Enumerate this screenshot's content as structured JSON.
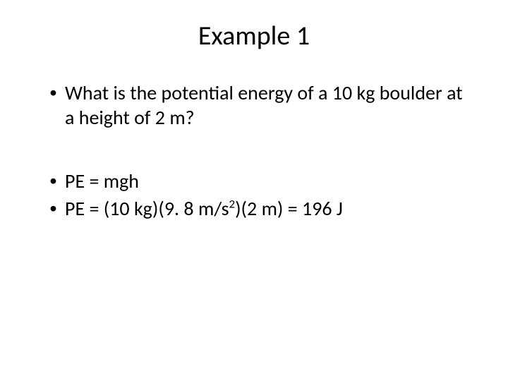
{
  "title": "Example 1",
  "bullets": {
    "group1": [
      "What is the potential energy of a 10 kg boulder at a height of 2 m?"
    ],
    "group2": [
      "PE = mgh",
      "PE = (10 kg)(9. 8 m/s²)(2 m) = 196 J"
    ]
  },
  "style": {
    "background_color": "#ffffff",
    "text_color": "#000000",
    "title_fontsize": 38,
    "body_fontsize": 28,
    "font_family": "Calibri"
  }
}
